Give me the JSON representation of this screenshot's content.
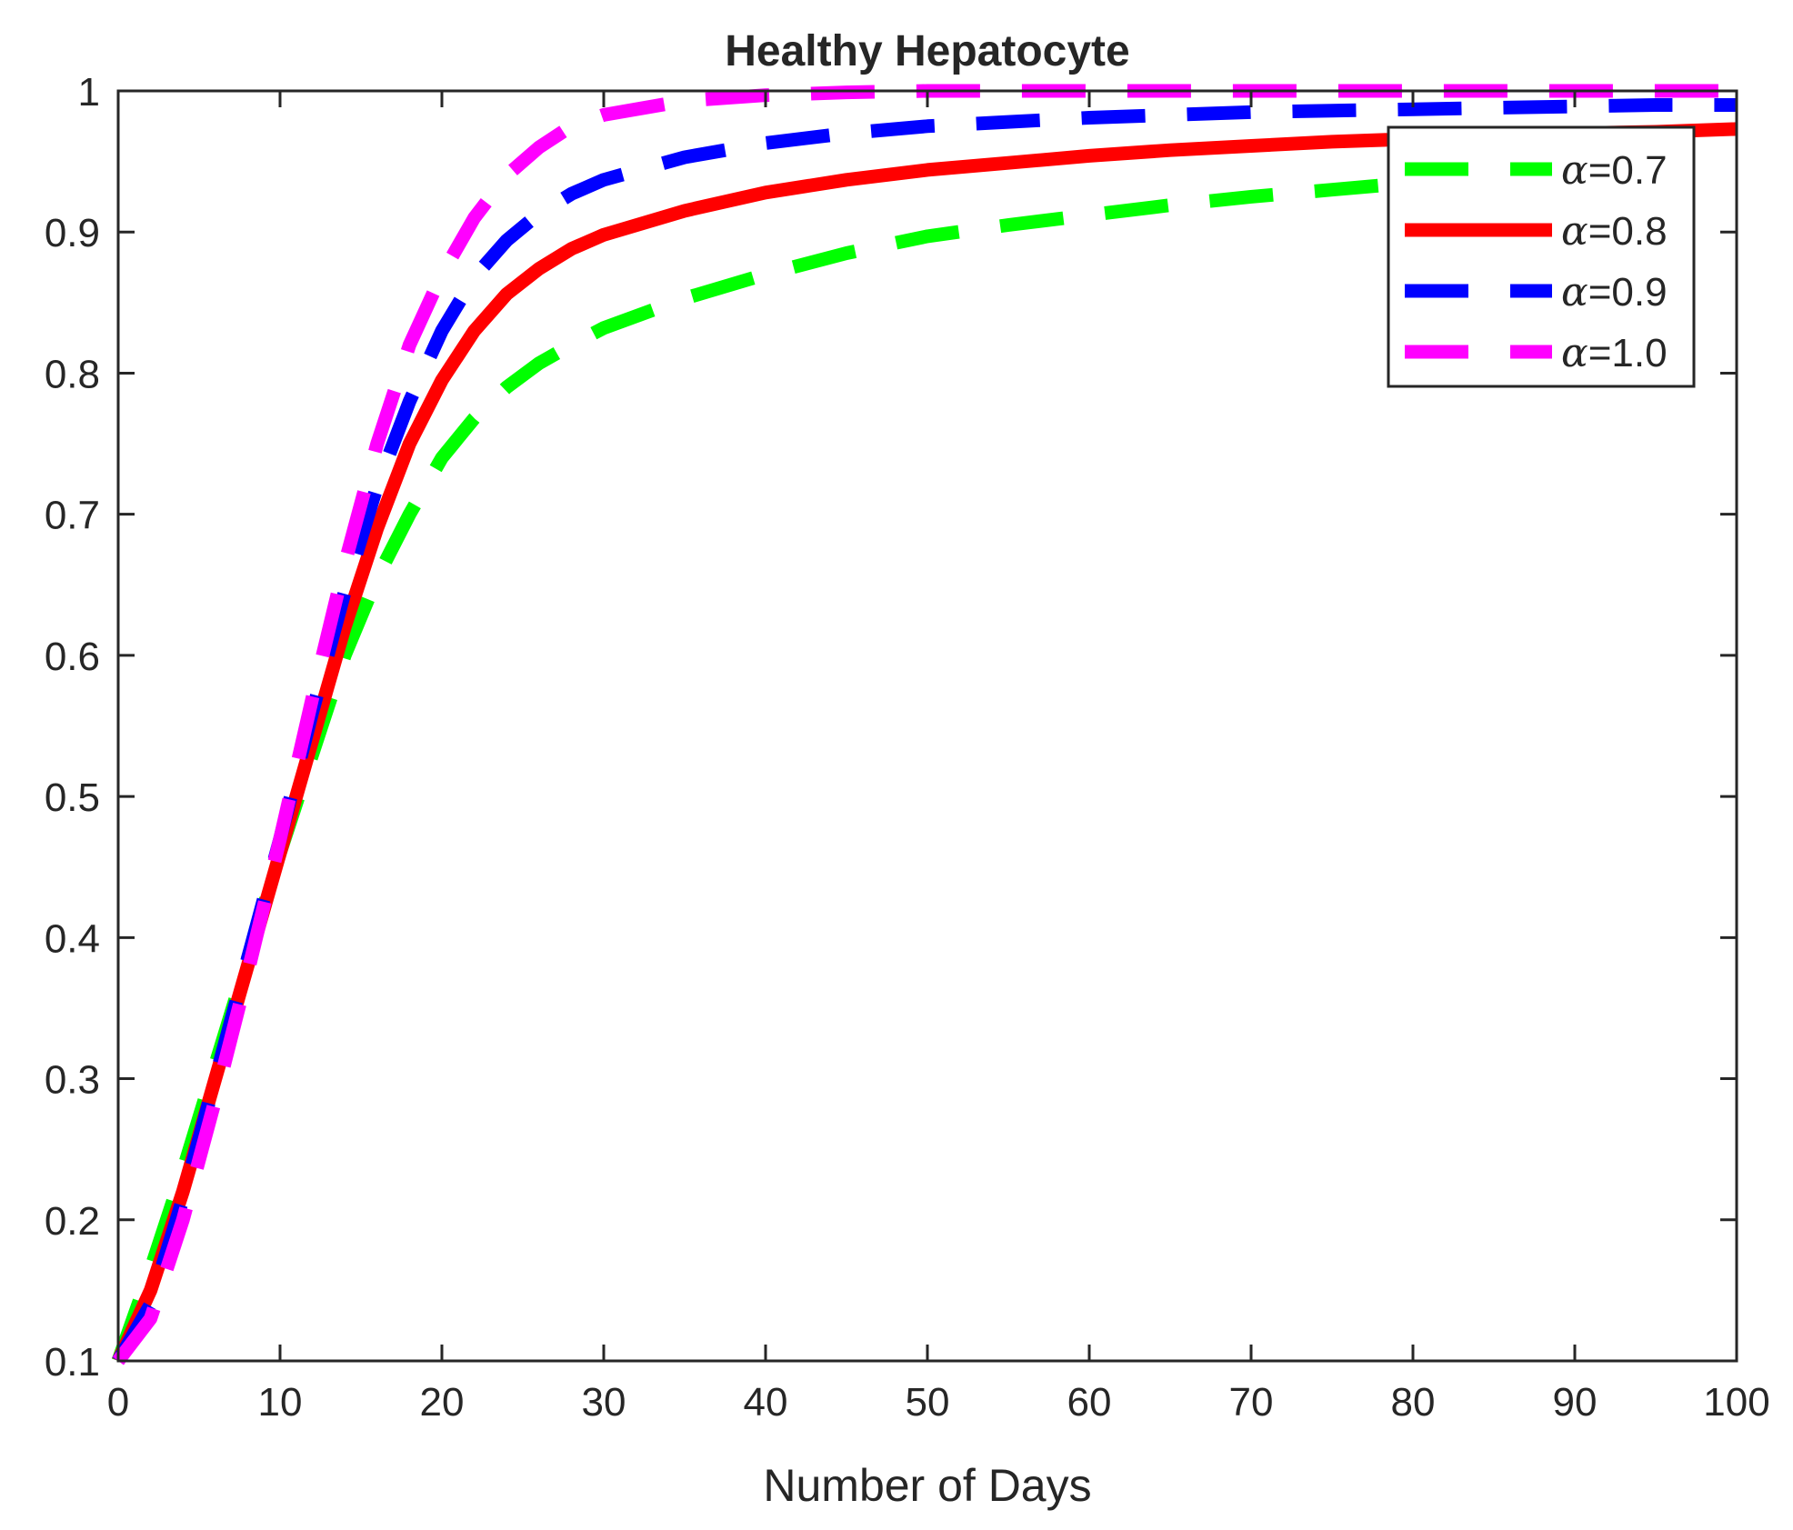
{
  "chart_data": {
    "type": "line",
    "title": "Healthy Hepatocyte",
    "xlabel": "Number of Days",
    "ylabel": "",
    "xlim": [
      0,
      100
    ],
    "ylim": [
      0.1,
      1
    ],
    "xticks": [
      0,
      10,
      20,
      30,
      40,
      50,
      60,
      70,
      80,
      90,
      100
    ],
    "yticks": [
      0.1,
      0.2,
      0.3,
      0.4,
      0.5,
      0.6,
      0.7,
      0.8,
      0.9,
      1
    ],
    "xtick_labels": [
      "0",
      "10",
      "20",
      "30",
      "40",
      "50",
      "60",
      "70",
      "80",
      "90",
      "100"
    ],
    "ytick_labels": [
      "0.1",
      "0.2",
      "0.3",
      "0.4",
      "0.5",
      "0.6",
      "0.7",
      "0.8",
      "0.9",
      "1"
    ],
    "grid": false,
    "legend_position": "top-right",
    "x": [
      0,
      2,
      4,
      6,
      8,
      10,
      12,
      14,
      16,
      18,
      20,
      22,
      24,
      26,
      28,
      30,
      35,
      40,
      45,
      50,
      55,
      60,
      65,
      70,
      75,
      80,
      85,
      90,
      95,
      100
    ],
    "series": [
      {
        "name": "α=0.7",
        "symbol": "α",
        "suffix": "=0.7",
        "color": "#00ff00",
        "dash": "dashed",
        "values": [
          0.1,
          0.165,
          0.235,
          0.31,
          0.385,
          0.46,
          0.53,
          0.6,
          0.655,
          0.7,
          0.74,
          0.768,
          0.79,
          0.807,
          0.82,
          0.832,
          0.853,
          0.87,
          0.885,
          0.897,
          0.905,
          0.912,
          0.919,
          0.925,
          0.93,
          0.935,
          0.939,
          0.942,
          0.945,
          0.948
        ]
      },
      {
        "name": "α=0.8",
        "symbol": "α",
        "suffix": "=0.8",
        "color": "#ff0000",
        "dash": "solid",
        "values": [
          0.1,
          0.15,
          0.22,
          0.3,
          0.38,
          0.46,
          0.54,
          0.62,
          0.69,
          0.75,
          0.795,
          0.83,
          0.856,
          0.874,
          0.888,
          0.898,
          0.915,
          0.928,
          0.937,
          0.944,
          0.949,
          0.954,
          0.958,
          0.961,
          0.964,
          0.966,
          0.968,
          0.97,
          0.971,
          0.973
        ]
      },
      {
        "name": "α=0.9",
        "symbol": "α",
        "suffix": "=0.9",
        "color": "#0000ff",
        "dash": "dashed",
        "values": [
          0.1,
          0.14,
          0.215,
          0.3,
          0.385,
          0.47,
          0.56,
          0.645,
          0.72,
          0.78,
          0.83,
          0.868,
          0.894,
          0.913,
          0.927,
          0.937,
          0.953,
          0.963,
          0.97,
          0.975,
          0.978,
          0.981,
          0.983,
          0.985,
          0.986,
          0.987,
          0.988,
          0.989,
          0.99,
          0.99
        ]
      },
      {
        "name": "α=1.0",
        "symbol": "α",
        "suffix": "=1.0",
        "color": "#ff00ff",
        "dash": "dashed",
        "values": [
          0.1,
          0.13,
          0.2,
          0.285,
          0.375,
          0.47,
          0.57,
          0.665,
          0.75,
          0.82,
          0.87,
          0.91,
          0.94,
          0.96,
          0.975,
          0.983,
          0.993,
          0.997,
          0.999,
          1.0,
          1.0,
          1.0,
          1.0,
          1.0,
          1.0,
          1.0,
          1.0,
          1.0,
          1.0,
          1.0
        ]
      }
    ]
  }
}
